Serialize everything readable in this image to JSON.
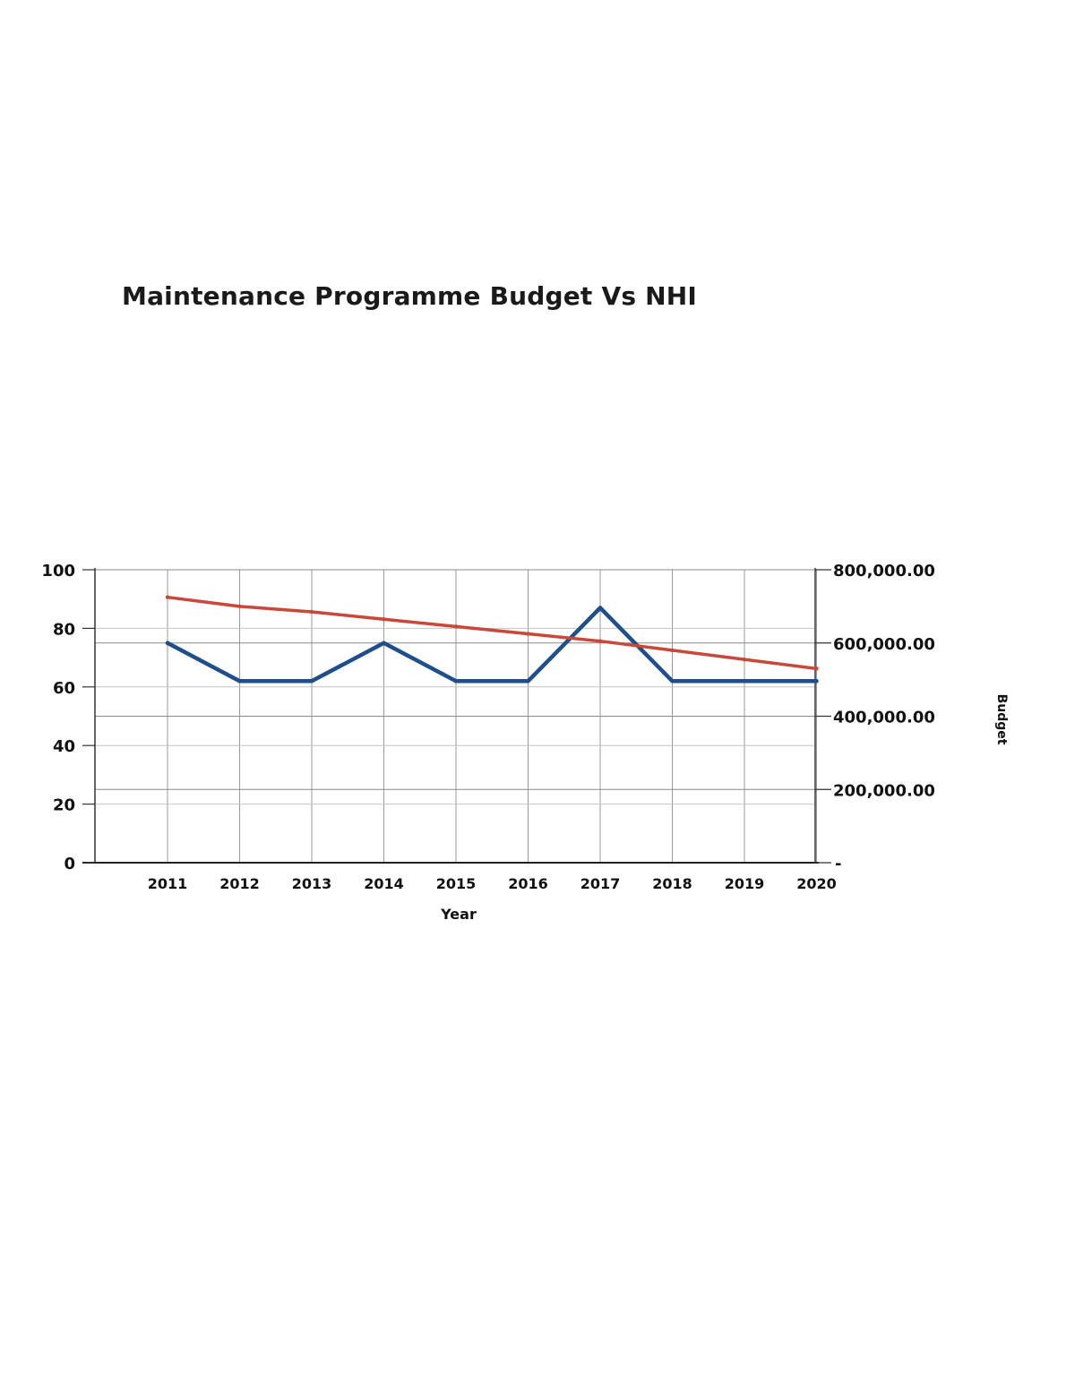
{
  "chart_data": {
    "type": "line",
    "title": "Maintenance Programme Budget Vs NHI",
    "xlabel": "Year",
    "ylabel": "",
    "y2label": "Budget",
    "categories": [
      "2011",
      "2012",
      "2013",
      "2014",
      "2015",
      "2016",
      "2017",
      "2018",
      "2019",
      "2020"
    ],
    "ylim": [
      0,
      100
    ],
    "y2lim": [
      0,
      800000
    ],
    "yticks": [
      "0",
      "20",
      "40",
      "60",
      "80",
      "100"
    ],
    "y2ticks": [
      "-",
      "200,000.00",
      "400,000.00",
      "600,000.00",
      "800,000.00"
    ],
    "grid": true,
    "series": [
      {
        "axis": "left",
        "color": "#1f4e8c",
        "values": [
          75,
          62,
          62,
          75,
          62,
          62,
          87,
          62,
          62,
          62
        ]
      },
      {
        "axis": "right",
        "color": "#c9483a",
        "values": [
          725000,
          700000,
          685000,
          665000,
          645000,
          625000,
          605000,
          580000,
          555000,
          530000
        ]
      }
    ]
  }
}
